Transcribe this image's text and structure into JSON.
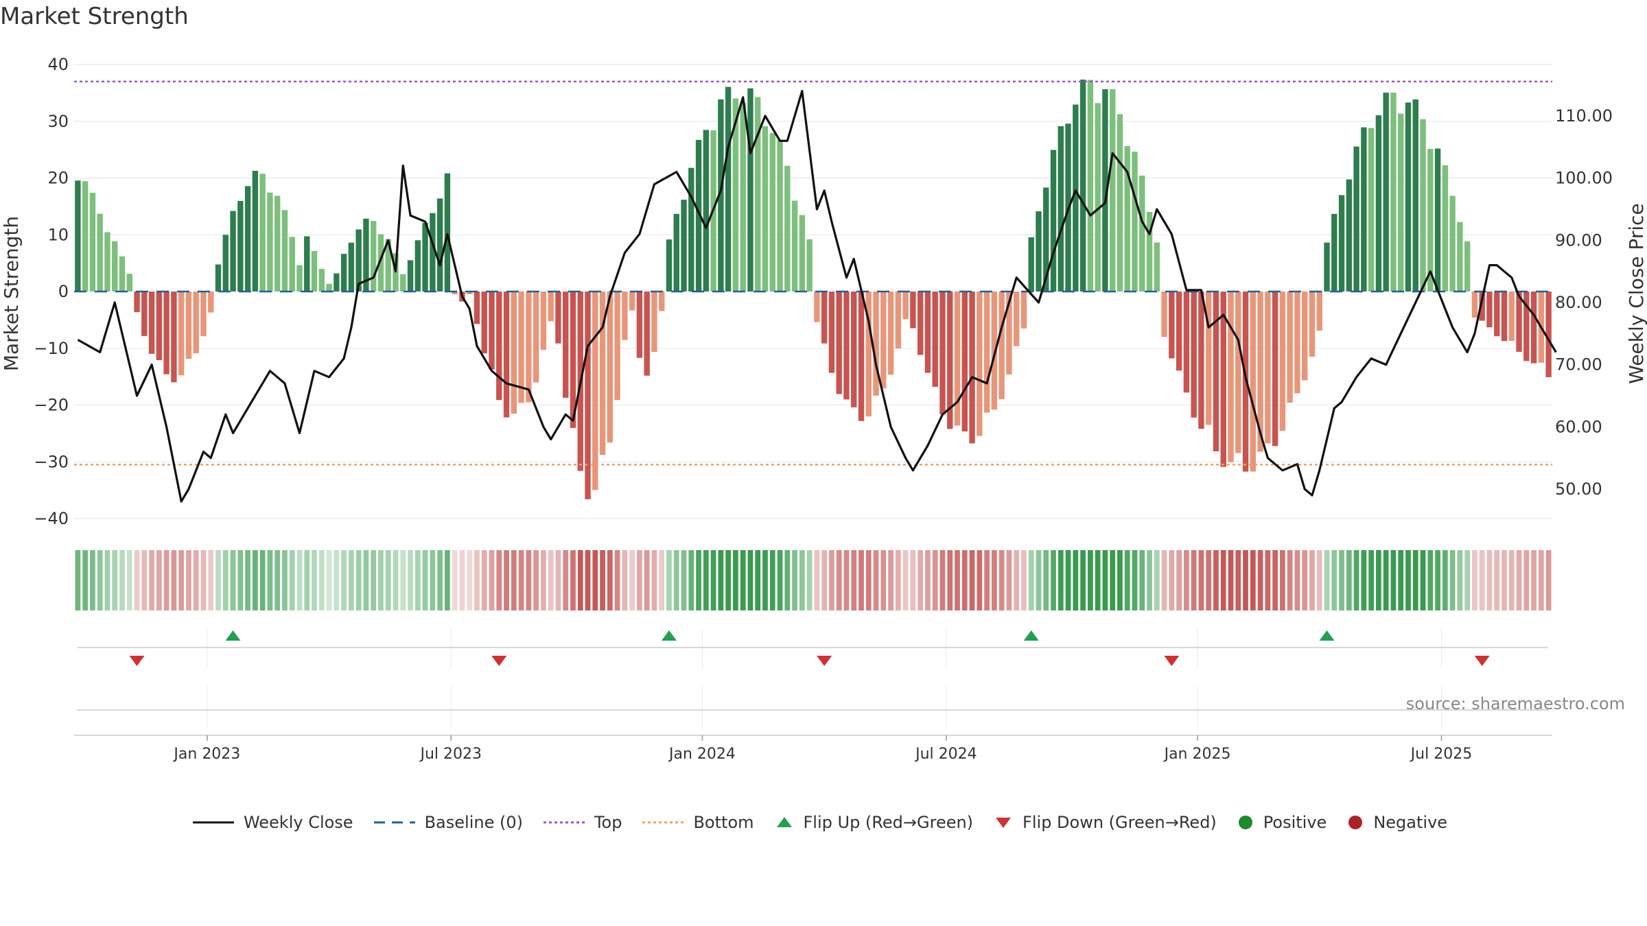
{
  "title": "Market Strength",
  "source": "source: sharemaestro.com",
  "colors": {
    "pos_strong": "#2e7d4f",
    "pos_light": "#7dbf7d",
    "neg_strong": "#c85450",
    "neg_light": "#e8967a",
    "price_line": "#111111",
    "baseline": "#1f5fa0",
    "top": "#9955cc",
    "bottom": "#f0a060",
    "flip_up": "#22a050",
    "flip_down": "#d03030",
    "positive": "#1e8a2e",
    "negative": "#b0202a"
  },
  "chart_data": {
    "type": "bar",
    "title": "Market Strength",
    "ylabel": "Market Strength",
    "y2label": "Weekly Close Price",
    "ylim": [
      -40,
      40
    ],
    "y2lim": [
      43.5,
      116.5
    ],
    "yticks": [
      "40",
      "30",
      "20",
      "10",
      "0",
      "−10",
      "−20",
      "−30",
      "−40"
    ],
    "y2ticks": [
      "110.00",
      "100.00",
      "90.00",
      "80.00",
      "70.00",
      "60.00",
      "50.00"
    ],
    "xticks": [
      "Jan 2023",
      "Jul 2023",
      "Jan 2024",
      "Jul 2024",
      "Jan 2025",
      "Jul 2025"
    ],
    "xtick_weeks": [
      18,
      51,
      85,
      118,
      152,
      185
    ],
    "n_weeks": 200,
    "top_level": 37,
    "bottom_level": -30.5,
    "baseline": 0,
    "segments": [
      {
        "start": 0,
        "len": 8,
        "sign": 1,
        "peak": 23,
        "shape": "down"
      },
      {
        "start": 8,
        "len": 11,
        "sign": -1,
        "peak": 16,
        "shape": "mid"
      },
      {
        "start": 19,
        "len": 12,
        "sign": 1,
        "peak": 21.5,
        "shape": "mid"
      },
      {
        "start": 31,
        "len": 4,
        "sign": 1,
        "peak": 10,
        "shape": "down"
      },
      {
        "start": 35,
        "len": 10,
        "sign": 1,
        "peak": 13,
        "shape": "mid"
      },
      {
        "start": 45,
        "len": 6,
        "sign": 1,
        "peak": 21,
        "shape": "up"
      },
      {
        "start": 51,
        "len": 3,
        "sign": -1,
        "peak": 2,
        "shape": "mid"
      },
      {
        "start": 54,
        "len": 11,
        "sign": -1,
        "peak": 23,
        "shape": "mid"
      },
      {
        "start": 65,
        "len": 10,
        "sign": -1,
        "peak": 37,
        "shape": "mid"
      },
      {
        "start": 75,
        "len": 5,
        "sign": -1,
        "peak": 15,
        "shape": "mid"
      },
      {
        "start": 80,
        "len": 20,
        "sign": 1,
        "peak": 37,
        "shape": "mid"
      },
      {
        "start": 100,
        "len": 13,
        "sign": -1,
        "peak": 23,
        "shape": "mid"
      },
      {
        "start": 113,
        "len": 16,
        "sign": -1,
        "peak": 27,
        "shape": "mid"
      },
      {
        "start": 129,
        "len": 18,
        "sign": 1,
        "peak": 38.5,
        "shape": "mid"
      },
      {
        "start": 147,
        "len": 22,
        "sign": -1,
        "peak": 32.5,
        "shape": "mid"
      },
      {
        "start": 169,
        "len": 20,
        "sign": 1,
        "peak": 36,
        "shape": "mid"
      },
      {
        "start": 189,
        "len": 11,
        "sign": -1,
        "peak": 15.5,
        "shape": "up"
      }
    ],
    "price_points": [
      [
        0,
        74
      ],
      [
        3,
        72
      ],
      [
        5,
        80
      ],
      [
        7,
        70
      ],
      [
        8,
        65
      ],
      [
        10,
        70
      ],
      [
        12,
        60
      ],
      [
        14,
        48
      ],
      [
        15,
        50
      ],
      [
        17,
        56
      ],
      [
        18,
        55
      ],
      [
        20,
        62
      ],
      [
        21,
        59
      ],
      [
        23,
        63
      ],
      [
        26,
        69
      ],
      [
        28,
        67
      ],
      [
        30,
        59
      ],
      [
        32,
        69
      ],
      [
        34,
        68
      ],
      [
        36,
        71
      ],
      [
        37,
        76
      ],
      [
        38,
        83
      ],
      [
        40,
        84
      ],
      [
        42,
        90
      ],
      [
        43,
        85
      ],
      [
        44,
        102
      ],
      [
        45,
        94
      ],
      [
        47,
        93
      ],
      [
        49,
        86
      ],
      [
        50,
        91
      ],
      [
        52,
        81
      ],
      [
        53,
        79
      ],
      [
        54,
        73
      ],
      [
        56,
        69
      ],
      [
        58,
        67
      ],
      [
        61,
        66
      ],
      [
        63,
        60
      ],
      [
        64,
        58
      ],
      [
        66,
        62
      ],
      [
        67,
        61
      ],
      [
        69,
        73
      ],
      [
        71,
        76
      ],
      [
        72,
        81
      ],
      [
        74,
        88
      ],
      [
        76,
        91
      ],
      [
        78,
        99
      ],
      [
        81,
        101
      ],
      [
        83,
        97
      ],
      [
        85,
        92
      ],
      [
        87,
        98
      ],
      [
        88,
        105
      ],
      [
        90,
        113
      ],
      [
        91,
        104
      ],
      [
        93,
        110
      ],
      [
        95,
        106
      ],
      [
        96,
        106
      ],
      [
        98,
        114
      ],
      [
        100,
        95
      ],
      [
        101,
        98
      ],
      [
        102,
        93
      ],
      [
        104,
        84
      ],
      [
        105,
        87
      ],
      [
        107,
        77
      ],
      [
        108,
        70
      ],
      [
        110,
        60
      ],
      [
        112,
        55
      ],
      [
        113,
        53
      ],
      [
        115,
        57
      ],
      [
        117,
        62
      ],
      [
        119,
        64
      ],
      [
        121,
        68
      ],
      [
        123,
        67
      ],
      [
        125,
        76
      ],
      [
        127,
        84
      ],
      [
        130,
        80
      ],
      [
        132,
        88
      ],
      [
        134,
        95
      ],
      [
        135,
        98
      ],
      [
        137,
        94
      ],
      [
        139,
        96
      ],
      [
        140,
        104
      ],
      [
        142,
        101
      ],
      [
        144,
        93
      ],
      [
        145,
        91
      ],
      [
        146,
        95
      ],
      [
        148,
        91
      ],
      [
        150,
        82
      ],
      [
        152,
        82
      ],
      [
        153,
        76
      ],
      [
        155,
        78
      ],
      [
        157,
        74
      ],
      [
        158,
        68
      ],
      [
        160,
        59
      ],
      [
        161,
        55
      ],
      [
        163,
        53
      ],
      [
        165,
        54
      ],
      [
        166,
        50
      ],
      [
        167,
        49
      ],
      [
        168,
        53
      ],
      [
        170,
        63
      ],
      [
        171,
        64
      ],
      [
        173,
        68
      ],
      [
        175,
        71
      ],
      [
        177,
        70
      ],
      [
        179,
        75
      ],
      [
        181,
        80
      ],
      [
        183,
        85
      ],
      [
        185,
        79
      ],
      [
        186,
        76
      ],
      [
        188,
        72
      ],
      [
        189,
        75
      ],
      [
        191,
        86
      ],
      [
        192,
        86
      ],
      [
        193,
        85
      ],
      [
        194,
        84
      ],
      [
        195,
        81
      ],
      [
        197,
        78
      ],
      [
        198,
        76
      ],
      [
        199,
        74
      ],
      [
        200,
        72
      ]
    ],
    "flip_up_weeks": [
      21,
      80,
      129,
      169
    ],
    "flip_down_weeks": [
      8,
      57,
      101,
      148,
      190
    ]
  },
  "legend": [
    {
      "label": "Weekly Close",
      "icon": "solid-line-icon"
    },
    {
      "label": "Baseline (0)",
      "icon": "dashed-line-icon"
    },
    {
      "label": "Top",
      "icon": "dotted-line-icon"
    },
    {
      "label": "Bottom",
      "icon": "dotted-line-icon"
    },
    {
      "label": "Flip Up (Red→Green)",
      "icon": "triangle-up-icon"
    },
    {
      "label": "Flip Down (Green→Red)",
      "icon": "triangle-down-icon"
    },
    {
      "label": "Positive",
      "icon": "circle-icon"
    },
    {
      "label": "Negative",
      "icon": "circle-icon"
    }
  ]
}
